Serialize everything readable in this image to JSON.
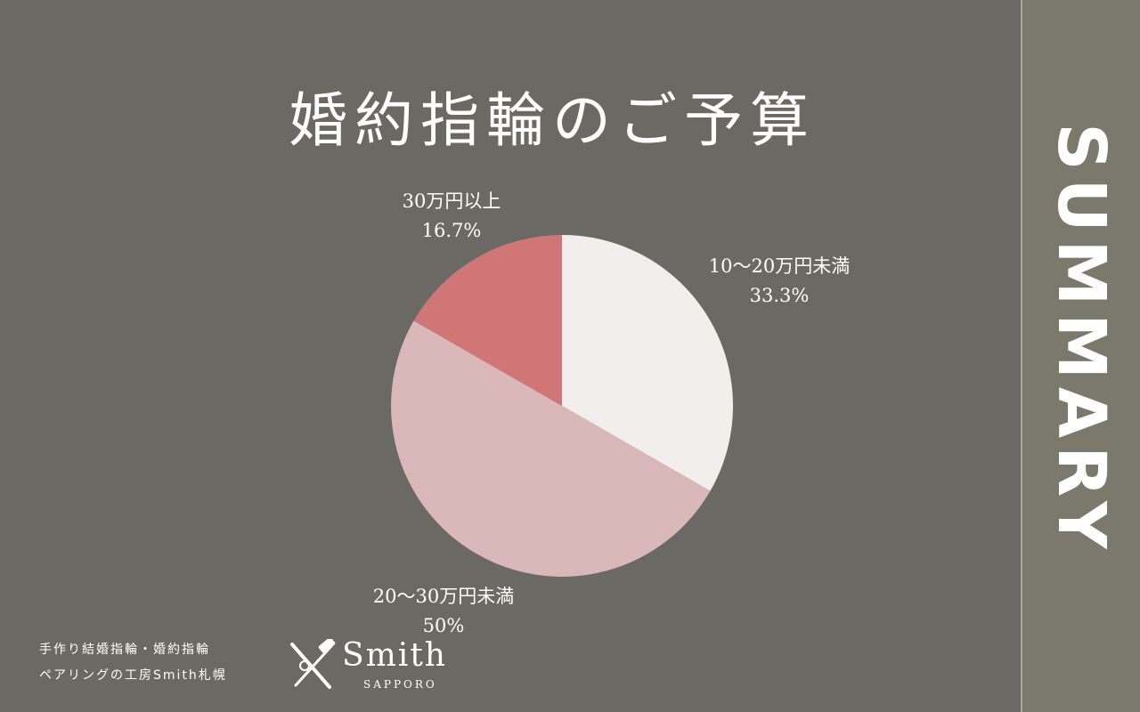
{
  "title": "婚約指輪のご予算",
  "side_label": "SUMMARY",
  "chart_data": {
    "type": "pie",
    "title": "婚約指輪のご予算",
    "slices": [
      {
        "label": "10〜20万円未満",
        "percent_label": "33.3%",
        "value": 33.3,
        "color": "#f3eeee"
      },
      {
        "label": "20〜30万円未満",
        "percent_label": "50%",
        "value": 50,
        "color": "#dab8b9"
      },
      {
        "label": "30万円以上",
        "percent_label": "16.7%",
        "value": 16.7,
        "color": "#d07676"
      }
    ],
    "start": "12 o'clock",
    "direction": "clockwise",
    "legend": "none"
  },
  "footer": {
    "line1": "手作り結婚指輪・婚約指輪",
    "line2": "ペアリングの工房Smith札幌",
    "logo_name": "Smith",
    "logo_sub": "SAPPORO"
  }
}
